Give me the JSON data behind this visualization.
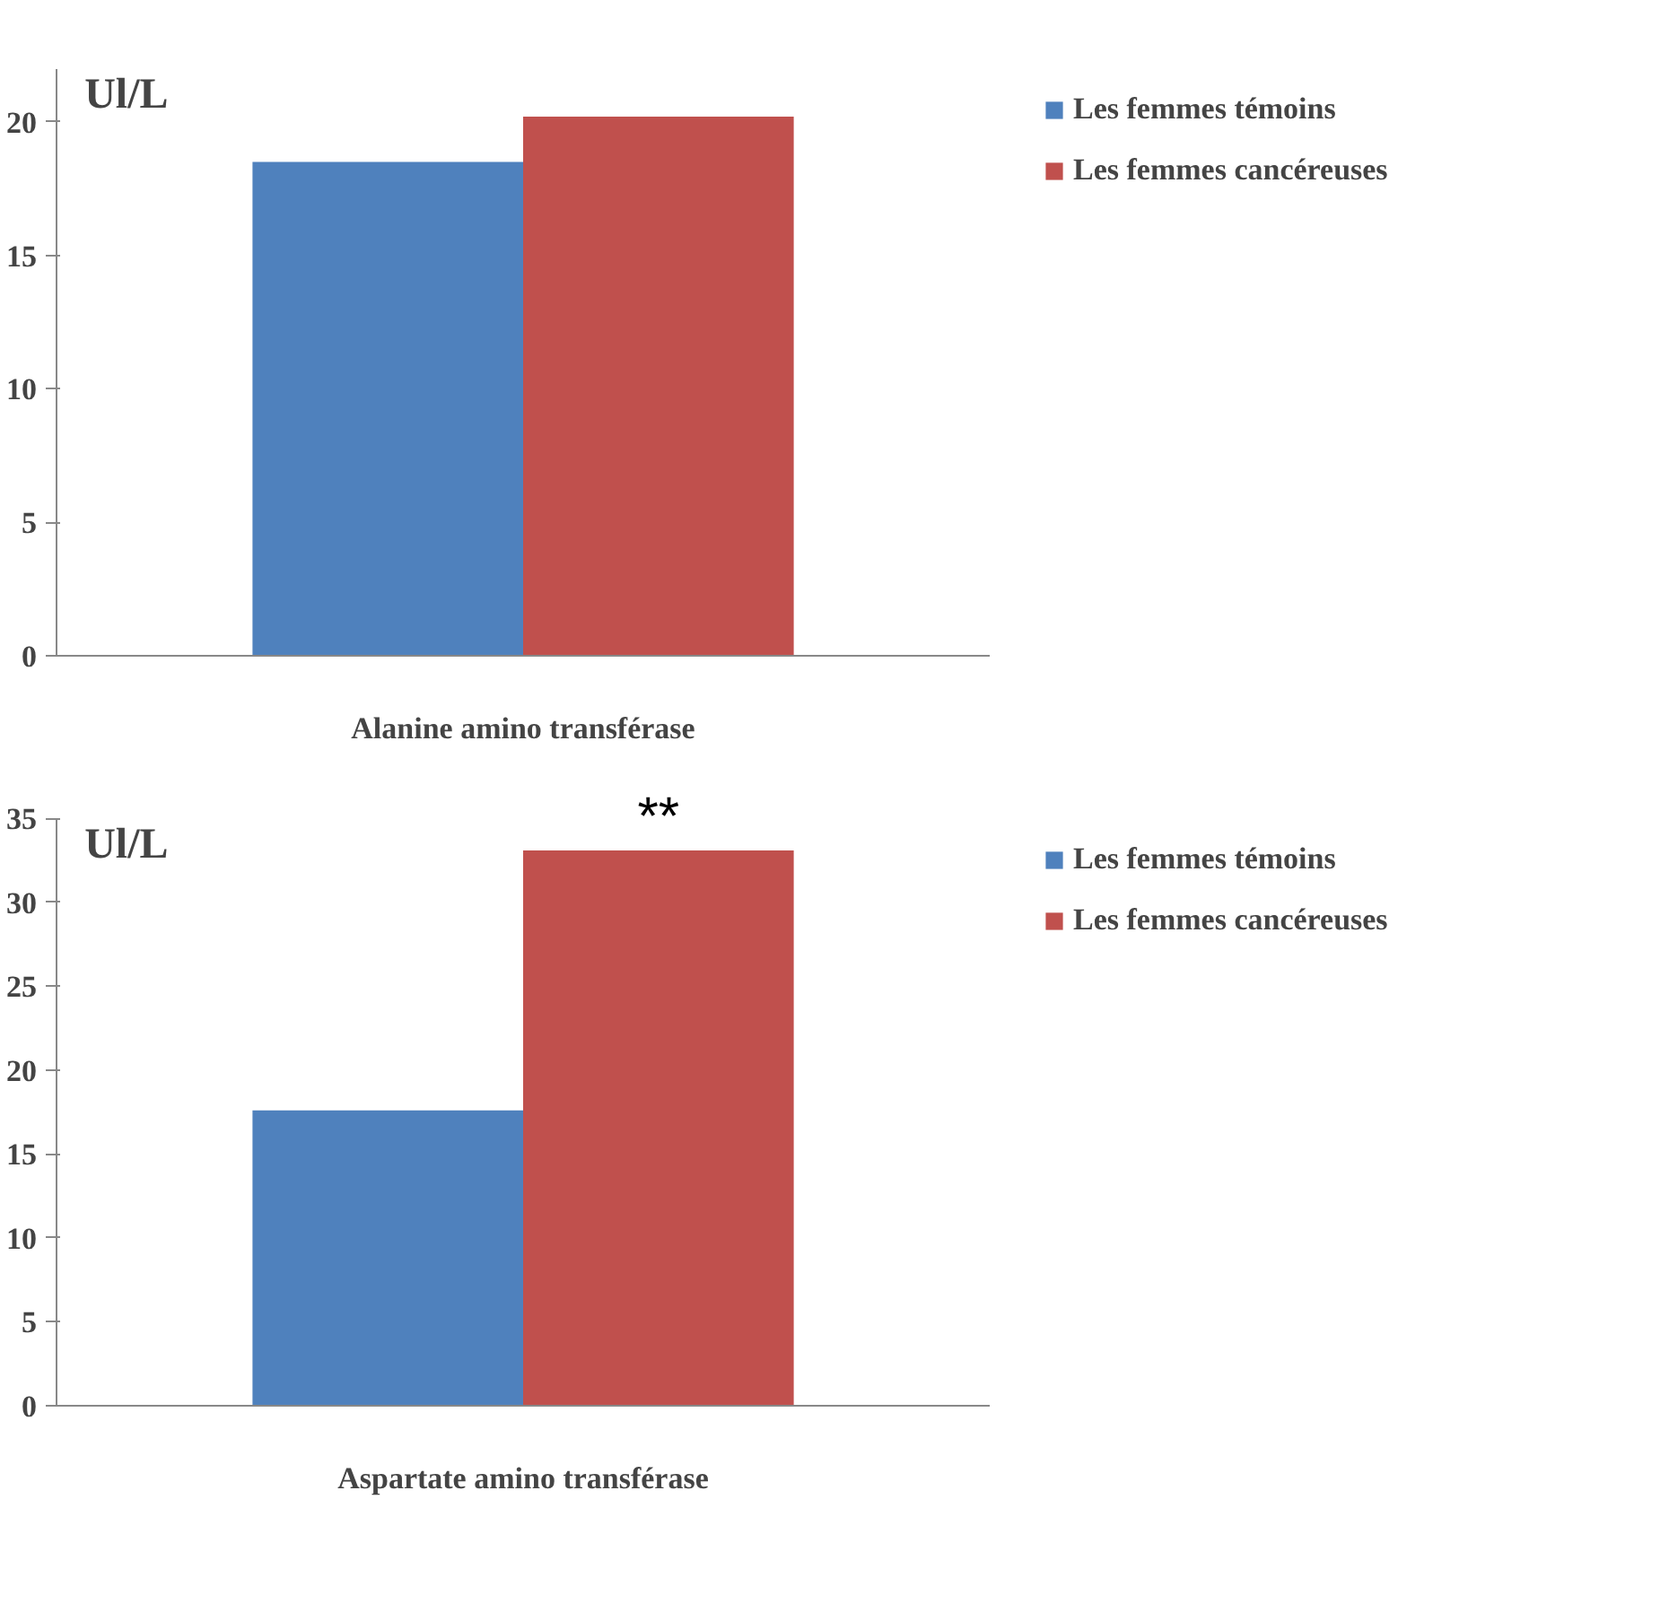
{
  "chart_data": [
    {
      "type": "bar",
      "categories": [
        "Alanine amino transférase"
      ],
      "ylabel": "Ul/L",
      "ylim": [
        0,
        22
      ],
      "yticks": [
        0,
        5,
        10,
        15,
        20
      ],
      "grid": false,
      "legend": "right",
      "series": [
        {
          "name": "Les femmes témoins",
          "color": "#4f81bd",
          "values": [
            18.5
          ]
        },
        {
          "name": "Les femmes cancéreuses",
          "color": "#c0504d",
          "values": [
            20.2
          ]
        }
      ]
    },
    {
      "type": "bar",
      "categories": [
        "Aspartate amino transférase"
      ],
      "ylabel": "Ul/L",
      "ylim": [
        0,
        35
      ],
      "yticks": [
        0,
        5,
        10,
        15,
        20,
        25,
        30,
        35
      ],
      "grid": false,
      "legend": "right",
      "annotations": [
        {
          "text": "**",
          "x": "Aspartate amino transférase",
          "y": 33.1
        }
      ],
      "series": [
        {
          "name": "Les femmes témoins",
          "color": "#4f81bd",
          "values": [
            17.6
          ]
        },
        {
          "name": "Les femmes cancéreuses",
          "color": "#c0504d",
          "values": [
            33.1
          ]
        }
      ]
    }
  ]
}
